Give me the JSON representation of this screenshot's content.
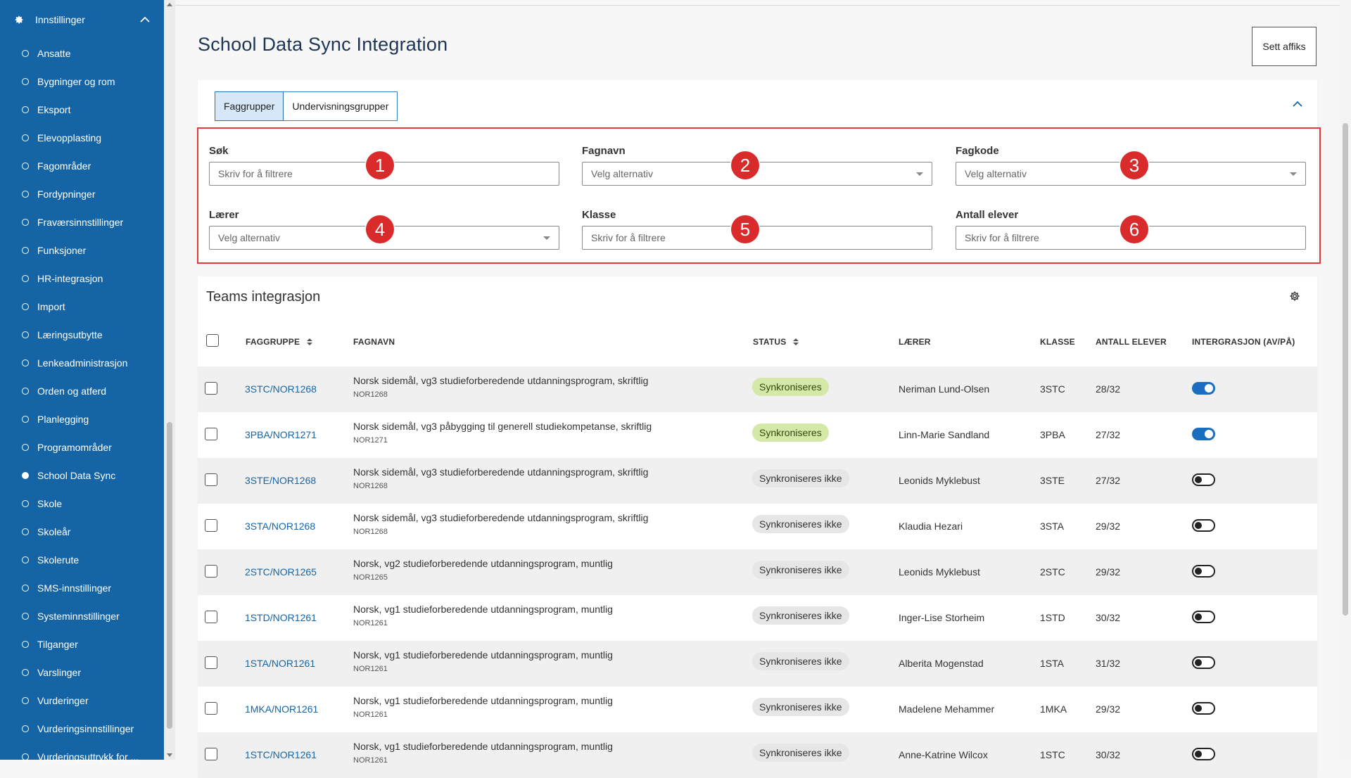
{
  "sidebar": {
    "header": "Innstillinger",
    "items": [
      {
        "label": "Ansatte",
        "active": false
      },
      {
        "label": "Bygninger og rom",
        "active": false
      },
      {
        "label": "Eksport",
        "active": false
      },
      {
        "label": "Elevopplasting",
        "active": false
      },
      {
        "label": "Fagområder",
        "active": false
      },
      {
        "label": "Fordypninger",
        "active": false
      },
      {
        "label": "Fraværsinnstillinger",
        "active": false
      },
      {
        "label": "Funksjoner",
        "active": false
      },
      {
        "label": "HR-integrasjon",
        "active": false
      },
      {
        "label": "Import",
        "active": false
      },
      {
        "label": "Læringsutbytte",
        "active": false
      },
      {
        "label": "Lenkeadministrasjon",
        "active": false
      },
      {
        "label": "Orden og atferd",
        "active": false
      },
      {
        "label": "Planlegging",
        "active": false
      },
      {
        "label": "Programområder",
        "active": false
      },
      {
        "label": "School Data Sync",
        "active": true
      },
      {
        "label": "Skole",
        "active": false
      },
      {
        "label": "Skoleår",
        "active": false
      },
      {
        "label": "Skolerute",
        "active": false
      },
      {
        "label": "SMS-innstillinger",
        "active": false
      },
      {
        "label": "Systeminnstillinger",
        "active": false
      },
      {
        "label": "Tilganger",
        "active": false
      },
      {
        "label": "Varslinger",
        "active": false
      },
      {
        "label": "Vurderinger",
        "active": false
      },
      {
        "label": "Vurderingsinnstillinger",
        "active": false
      },
      {
        "label": "Vurderingsuttrykk for ...",
        "active": false
      }
    ]
  },
  "page": {
    "title": "School Data Sync Integration",
    "affix_button": "Sett affiks"
  },
  "tabs": [
    {
      "label": "Faggrupper",
      "active": true
    },
    {
      "label": "Undervisningsgrupper",
      "active": false
    }
  ],
  "filters": {
    "search": {
      "label": "Søk",
      "placeholder": "Skriv for å filtrere"
    },
    "subject_name": {
      "label": "Fagnavn",
      "value": "Velg alternativ"
    },
    "subject_code": {
      "label": "Fagkode",
      "value": "Velg alternativ"
    },
    "teacher": {
      "label": "Lærer",
      "value": "Velg alternativ"
    },
    "class": {
      "label": "Klasse",
      "placeholder": "Skriv for å filtrere"
    },
    "student_count": {
      "label": "Antall elever",
      "placeholder": "Skriv for å filtrere"
    },
    "markers": [
      "1",
      "2",
      "3",
      "4",
      "5",
      "6"
    ]
  },
  "table": {
    "title": "Teams integrasjon",
    "headers": {
      "group": "FAGGRUPPE",
      "subject": "FAGNAVN",
      "status": "STATUS",
      "teacher": "LÆRER",
      "class": "KLASSE",
      "count": "ANTALL ELEVER",
      "integration": "INTERGRASJON (AV/PÅ)"
    },
    "rows": [
      {
        "group": "3STC/NOR1268",
        "name": "Norsk sidemål, vg3 studieforberedende utdanningsprogram, skriftlig",
        "code": "NOR1268",
        "status": "Synkroniseres",
        "synced": true,
        "teacher": "Neriman Lund-Olsen",
        "class": "3STC",
        "count": "28/32"
      },
      {
        "group": "3PBA/NOR1271",
        "name": "Norsk sidemål, vg3 påbygging til generell studiekompetanse, skriftlig",
        "code": "NOR1271",
        "status": "Synkroniseres",
        "synced": true,
        "teacher": "Linn-Marie Sandland",
        "class": "3PBA",
        "count": "27/32"
      },
      {
        "group": "3STE/NOR1268",
        "name": "Norsk sidemål, vg3 studieforberedende utdanningsprogram, skriftlig",
        "code": "NOR1268",
        "status": "Synkroniseres ikke",
        "synced": false,
        "teacher": "Leonids Myklebust",
        "class": "3STE",
        "count": "27/32"
      },
      {
        "group": "3STA/NOR1268",
        "name": "Norsk sidemål, vg3 studieforberedende utdanningsprogram, skriftlig",
        "code": "NOR1268",
        "status": "Synkroniseres ikke",
        "synced": false,
        "teacher": "Klaudia Hezari",
        "class": "3STA",
        "count": "29/32"
      },
      {
        "group": "2STC/NOR1265",
        "name": "Norsk, vg2 studieforberedende utdanningsprogram, muntlig",
        "code": "NOR1265",
        "status": "Synkroniseres ikke",
        "synced": false,
        "teacher": "Leonids Myklebust",
        "class": "2STC",
        "count": "29/32"
      },
      {
        "group": "1STD/NOR1261",
        "name": "Norsk, vg1 studieforberedende utdanningsprogram, muntlig",
        "code": "NOR1261",
        "status": "Synkroniseres ikke",
        "synced": false,
        "teacher": "Inger-Lise Storheim",
        "class": "1STD",
        "count": "30/32"
      },
      {
        "group": "1STA/NOR1261",
        "name": "Norsk, vg1 studieforberedende utdanningsprogram, muntlig",
        "code": "NOR1261",
        "status": "Synkroniseres ikke",
        "synced": false,
        "teacher": "Alberita Mogenstad",
        "class": "1STA",
        "count": "31/32"
      },
      {
        "group": "1MKA/NOR1261",
        "name": "Norsk, vg1 studieforberedende utdanningsprogram, muntlig",
        "code": "NOR1261",
        "status": "Synkroniseres ikke",
        "synced": false,
        "teacher": "Madelene Mehammer",
        "class": "1MKA",
        "count": "29/32"
      },
      {
        "group": "1STC/NOR1261",
        "name": "Norsk, vg1 studieforberedende utdanningsprogram, muntlig",
        "code": "NOR1261",
        "status": "Synkroniseres ikke",
        "synced": false,
        "teacher": "Anne-Katrine Wilcox",
        "class": "1STC",
        "count": "30/32"
      }
    ]
  }
}
